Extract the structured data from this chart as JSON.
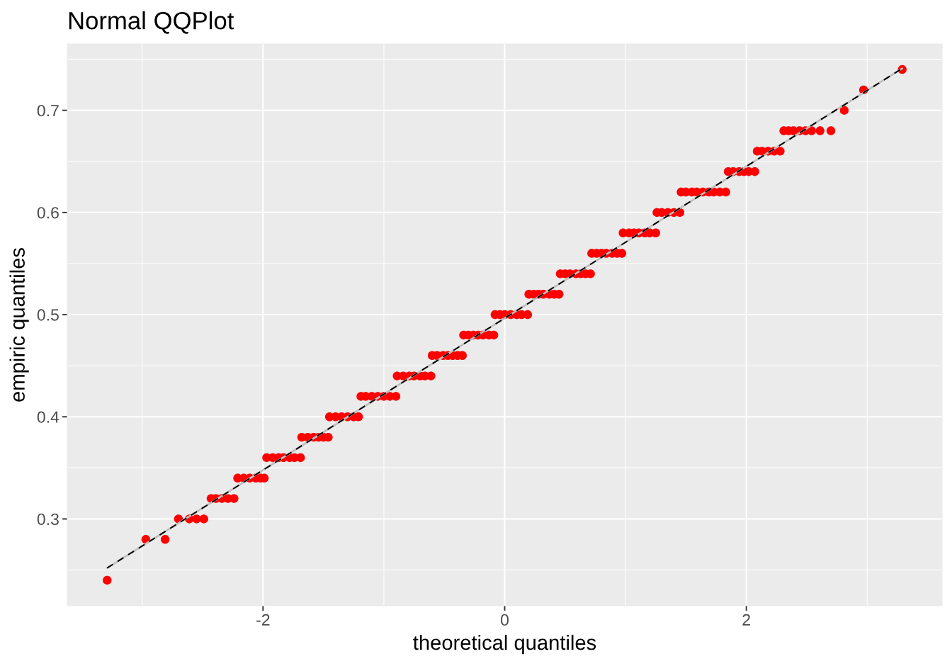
{
  "chart_data": {
    "type": "scatter",
    "title": "Normal QQPlot",
    "xlabel": "theoretical quantiles",
    "ylabel": "empiric quantiles",
    "xlim": [
      -3.62,
      3.62
    ],
    "ylim": [
      0.215,
      0.765
    ],
    "xticks": [
      {
        "value": -3,
        "label": null
      },
      -2,
      {
        "value": -1,
        "label": null
      },
      0,
      {
        "value": 1,
        "label": null
      },
      2,
      {
        "value": 3,
        "label": null
      }
    ],
    "yticks": [
      {
        "value": 0.25,
        "label": null
      },
      0.3,
      {
        "value": 0.35,
        "label": null
      },
      0.4,
      {
        "value": 0.45,
        "label": null
      },
      0.5,
      {
        "value": 0.55,
        "label": null
      },
      0.6,
      {
        "value": 0.65,
        "label": null
      },
      0.7,
      {
        "value": 0.75,
        "label": null
      }
    ],
    "grid": true,
    "series": [
      {
        "color": "#ff0000",
        "marker": "circle",
        "x": [
          -3.29,
          -2.97,
          -2.81,
          -2.7,
          -2.61,
          -2.55,
          -2.49,
          -2.43,
          -2.39,
          -2.34,
          -2.29,
          -2.24,
          -2.21,
          -2.16,
          -2.11,
          -2.06,
          -2.02,
          -1.99,
          -1.97,
          -1.92,
          -1.87,
          -1.83,
          -1.78,
          -1.74,
          -1.69,
          -1.68,
          -1.63,
          -1.58,
          -1.54,
          -1.5,
          -1.46,
          -1.45,
          -1.4,
          -1.35,
          -1.3,
          -1.25,
          -1.21,
          -1.19,
          -1.15,
          -1.1,
          -1.05,
          -1.0,
          -0.95,
          -0.9,
          -0.89,
          -0.84,
          -0.79,
          -0.75,
          -0.7,
          -0.66,
          -0.61,
          -0.6,
          -0.56,
          -0.51,
          -0.47,
          -0.43,
          -0.39,
          -0.35,
          -0.34,
          -0.3,
          -0.26,
          -0.22,
          -0.18,
          -0.13,
          -0.09,
          -0.08,
          -0.04,
          0.0,
          0.05,
          0.1,
          0.14,
          0.19,
          0.2,
          0.24,
          0.28,
          0.32,
          0.37,
          0.41,
          0.45,
          0.46,
          0.5,
          0.54,
          0.59,
          0.63,
          0.67,
          0.71,
          0.72,
          0.76,
          0.8,
          0.84,
          0.89,
          0.93,
          0.97,
          0.98,
          1.03,
          1.07,
          1.11,
          1.16,
          1.2,
          1.25,
          1.26,
          1.3,
          1.35,
          1.4,
          1.45,
          1.46,
          1.5,
          1.55,
          1.59,
          1.64,
          1.69,
          1.73,
          1.78,
          1.83,
          1.85,
          1.89,
          1.94,
          1.98,
          2.02,
          2.07,
          2.09,
          2.13,
          2.18,
          2.23,
          2.28,
          2.31,
          2.35,
          2.39,
          2.44,
          2.49,
          2.54,
          2.61,
          2.7,
          2.81,
          2.97,
          3.29
        ],
        "values": [
          0.24,
          0.28,
          0.28,
          0.3,
          0.3,
          0.3,
          0.3,
          0.32,
          0.32,
          0.32,
          0.32,
          0.32,
          0.34,
          0.34,
          0.34,
          0.34,
          0.34,
          0.34,
          0.36,
          0.36,
          0.36,
          0.36,
          0.36,
          0.36,
          0.36,
          0.38,
          0.38,
          0.38,
          0.38,
          0.38,
          0.38,
          0.4,
          0.4,
          0.4,
          0.4,
          0.4,
          0.4,
          0.42,
          0.42,
          0.42,
          0.42,
          0.42,
          0.42,
          0.42,
          0.44,
          0.44,
          0.44,
          0.44,
          0.44,
          0.44,
          0.44,
          0.46,
          0.46,
          0.46,
          0.46,
          0.46,
          0.46,
          0.46,
          0.48,
          0.48,
          0.48,
          0.48,
          0.48,
          0.48,
          0.48,
          0.5,
          0.5,
          0.5,
          0.5,
          0.5,
          0.5,
          0.5,
          0.52,
          0.52,
          0.52,
          0.52,
          0.52,
          0.52,
          0.52,
          0.54,
          0.54,
          0.54,
          0.54,
          0.54,
          0.54,
          0.54,
          0.56,
          0.56,
          0.56,
          0.56,
          0.56,
          0.56,
          0.56,
          0.58,
          0.58,
          0.58,
          0.58,
          0.58,
          0.58,
          0.58,
          0.6,
          0.6,
          0.6,
          0.6,
          0.6,
          0.62,
          0.62,
          0.62,
          0.62,
          0.62,
          0.62,
          0.62,
          0.62,
          0.62,
          0.64,
          0.64,
          0.64,
          0.64,
          0.64,
          0.64,
          0.66,
          0.66,
          0.66,
          0.66,
          0.66,
          0.68,
          0.68,
          0.68,
          0.68,
          0.68,
          0.68,
          0.68,
          0.68,
          0.7,
          0.72,
          0.74
        ]
      },
      {
        "type": "line",
        "color": "#bebebe",
        "line_style": "solid",
        "x": [
          -3.29,
          3.29
        ],
        "values": [
          0.252,
          0.741
        ]
      },
      {
        "type": "line",
        "color": "#000000",
        "line_style": "dashed",
        "x": [
          -3.29,
          3.29
        ],
        "values": [
          0.252,
          0.741
        ]
      }
    ]
  }
}
